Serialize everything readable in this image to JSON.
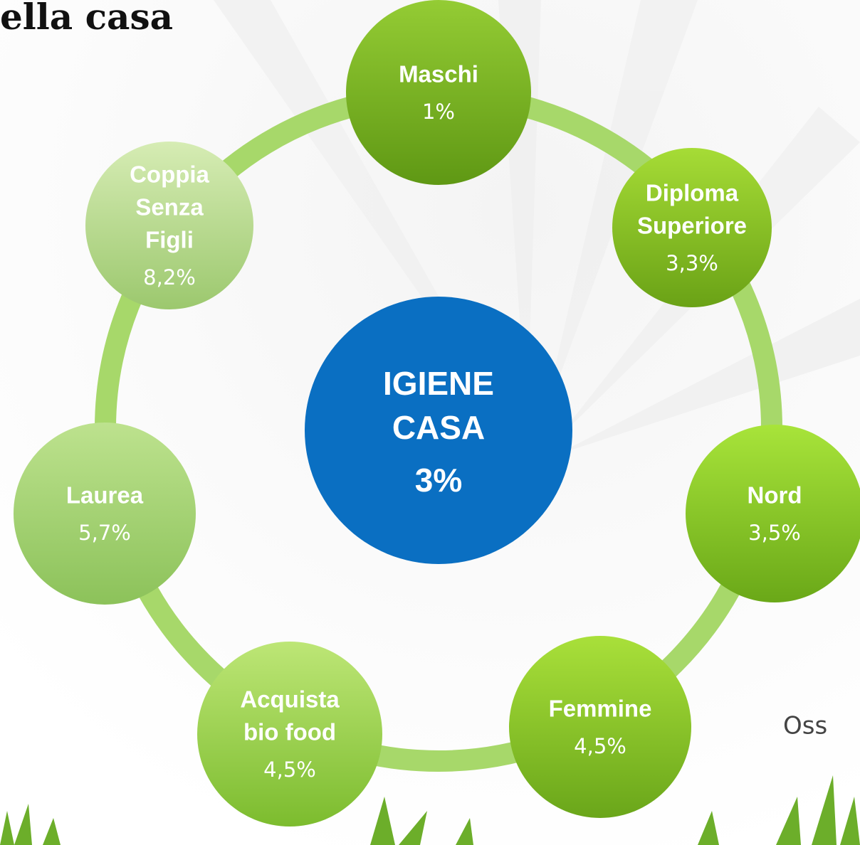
{
  "header": {
    "title": "ella casa"
  },
  "center": {
    "label_lines": [
      "IGIENE",
      "CASA"
    ],
    "value": "3%"
  },
  "nodes": [
    {
      "label_lines": [
        "Maschi"
      ],
      "value": "1%"
    },
    {
      "label_lines": [
        "Diploma",
        "Superiore"
      ],
      "value": "3,3%"
    },
    {
      "label_lines": [
        "Nord"
      ],
      "value": "3,5%"
    },
    {
      "label_lines": [
        "Femmine"
      ],
      "value": "4,5%"
    },
    {
      "label_lines": [
        "Acquista",
        "bio food"
      ],
      "value": "4,5%"
    },
    {
      "label_lines": [
        "Laurea"
      ],
      "value": "5,7%"
    },
    {
      "label_lines": [
        "Coppia",
        "Senza",
        "Figli"
      ],
      "value": "8,2%"
    }
  ],
  "footer": {
    "text": "Oss"
  }
}
